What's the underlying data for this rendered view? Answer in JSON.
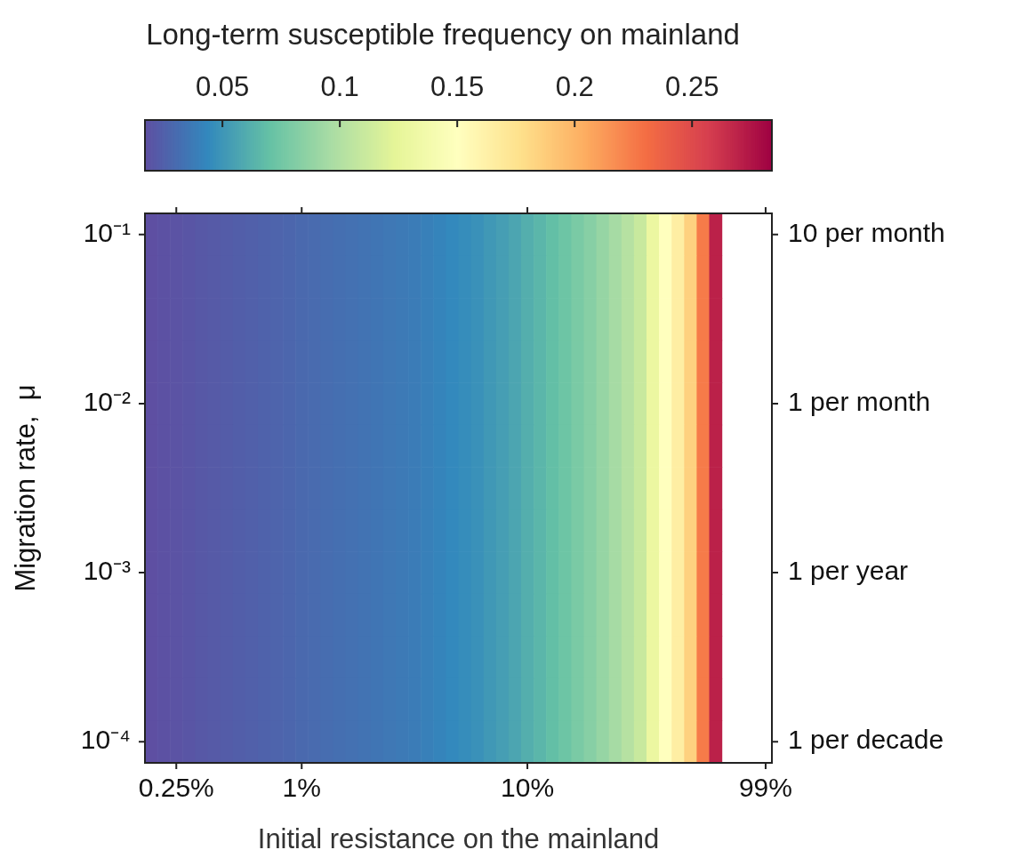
{
  "chart_data": {
    "type": "heatmap",
    "clabel": "Long-term susceptible frequency on mainland",
    "xlabel": "Initial resistance on the mainland",
    "ylabel": "Migration rate,  μ",
    "categories": [
      null,
      null,
      "0.25%",
      null,
      null,
      null,
      null,
      null,
      null,
      null,
      null,
      null,
      "1%",
      null,
      null,
      null,
      null,
      null,
      null,
      null,
      null,
      null,
      null,
      null,
      null,
      null,
      null,
      null,
      null,
      null,
      "10%",
      null,
      null,
      null,
      null,
      null,
      null,
      null,
      null,
      null,
      null,
      null,
      null,
      null,
      null,
      null,
      null,
      null,
      null,
      "99%"
    ],
    "y_categories": [
      "10⁻¹",
      null,
      null,
      null,
      "10⁻²",
      null,
      null,
      null,
      "10⁻³",
      null,
      null,
      null,
      "10⁻⁴"
    ],
    "y2_categories": [
      "10 per month",
      null,
      null,
      null,
      "1 per month",
      null,
      null,
      null,
      "1 per year",
      null,
      null,
      null,
      "1 per decade"
    ],
    "clim": [
      0.017,
      0.284
    ],
    "cticks": [
      0.05,
      0.1,
      0.15,
      0.2,
      0.25
    ],
    "cells": [
      [
        0.017,
        0.018,
        0.019,
        0.02,
        0.021,
        0.022,
        0.023,
        0.024,
        0.025,
        0.026,
        0.027,
        0.028,
        0.029,
        0.03,
        0.031,
        0.032,
        0.033,
        0.034,
        0.035,
        0.036,
        0.037,
        0.038,
        0.04,
        0.042,
        0.044,
        0.046,
        0.048,
        0.051,
        0.054,
        0.057,
        0.061,
        0.065,
        0.069,
        0.073,
        0.078,
        0.083,
        0.089,
        0.095,
        0.102,
        0.11,
        0.13,
        0.15,
        0.165,
        0.185,
        0.225,
        0.27,
        null,
        null,
        null,
        null
      ],
      [
        0.017,
        0.018,
        0.019,
        0.02,
        0.021,
        0.022,
        0.023,
        0.024,
        0.025,
        0.026,
        0.027,
        0.028,
        0.029,
        0.03,
        0.031,
        0.032,
        0.033,
        0.034,
        0.035,
        0.036,
        0.037,
        0.038,
        0.04,
        0.042,
        0.044,
        0.046,
        0.048,
        0.051,
        0.054,
        0.057,
        0.061,
        0.065,
        0.069,
        0.073,
        0.078,
        0.083,
        0.089,
        0.095,
        0.102,
        0.11,
        0.13,
        0.15,
        0.165,
        0.185,
        0.225,
        0.27,
        null,
        null,
        null,
        null
      ],
      [
        0.017,
        0.018,
        0.019,
        0.02,
        0.021,
        0.022,
        0.023,
        0.024,
        0.025,
        0.026,
        0.027,
        0.028,
        0.029,
        0.03,
        0.031,
        0.032,
        0.033,
        0.034,
        0.035,
        0.036,
        0.037,
        0.038,
        0.04,
        0.042,
        0.044,
        0.046,
        0.048,
        0.051,
        0.054,
        0.057,
        0.061,
        0.065,
        0.069,
        0.073,
        0.078,
        0.083,
        0.089,
        0.095,
        0.102,
        0.11,
        0.13,
        0.15,
        0.165,
        0.185,
        0.225,
        0.27,
        null,
        null,
        null,
        null
      ],
      [
        0.017,
        0.018,
        0.019,
        0.02,
        0.021,
        0.022,
        0.023,
        0.024,
        0.025,
        0.026,
        0.027,
        0.028,
        0.029,
        0.03,
        0.031,
        0.032,
        0.033,
        0.034,
        0.035,
        0.036,
        0.037,
        0.038,
        0.04,
        0.042,
        0.044,
        0.046,
        0.048,
        0.051,
        0.054,
        0.057,
        0.061,
        0.065,
        0.069,
        0.073,
        0.078,
        0.083,
        0.089,
        0.095,
        0.102,
        0.11,
        0.13,
        0.15,
        0.165,
        0.185,
        0.225,
        0.27,
        null,
        null,
        null,
        null
      ],
      [
        0.017,
        0.018,
        0.019,
        0.02,
        0.021,
        0.022,
        0.023,
        0.024,
        0.025,
        0.026,
        0.027,
        0.028,
        0.029,
        0.03,
        0.031,
        0.032,
        0.033,
        0.034,
        0.035,
        0.036,
        0.037,
        0.038,
        0.04,
        0.042,
        0.044,
        0.046,
        0.048,
        0.051,
        0.054,
        0.057,
        0.061,
        0.065,
        0.069,
        0.073,
        0.078,
        0.083,
        0.089,
        0.095,
        0.102,
        0.11,
        0.13,
        0.15,
        0.165,
        0.185,
        0.225,
        0.27,
        null,
        null,
        null,
        null
      ],
      [
        0.017,
        0.018,
        0.019,
        0.02,
        0.021,
        0.022,
        0.023,
        0.024,
        0.025,
        0.026,
        0.027,
        0.028,
        0.029,
        0.03,
        0.031,
        0.032,
        0.033,
        0.034,
        0.035,
        0.036,
        0.037,
        0.038,
        0.04,
        0.042,
        0.044,
        0.046,
        0.048,
        0.051,
        0.054,
        0.057,
        0.061,
        0.065,
        0.069,
        0.073,
        0.078,
        0.083,
        0.089,
        0.095,
        0.102,
        0.11,
        0.13,
        0.15,
        0.165,
        0.185,
        0.225,
        0.27,
        null,
        null,
        null,
        null
      ],
      [
        0.017,
        0.018,
        0.019,
        0.02,
        0.021,
        0.022,
        0.023,
        0.024,
        0.025,
        0.026,
        0.027,
        0.028,
        0.029,
        0.03,
        0.031,
        0.032,
        0.033,
        0.034,
        0.035,
        0.036,
        0.037,
        0.038,
        0.04,
        0.042,
        0.044,
        0.046,
        0.048,
        0.051,
        0.054,
        0.057,
        0.061,
        0.065,
        0.069,
        0.073,
        0.078,
        0.083,
        0.089,
        0.095,
        0.102,
        0.11,
        0.13,
        0.15,
        0.165,
        0.185,
        0.225,
        0.27,
        null,
        null,
        null,
        null
      ],
      [
        0.017,
        0.018,
        0.019,
        0.02,
        0.021,
        0.022,
        0.023,
        0.024,
        0.025,
        0.026,
        0.027,
        0.028,
        0.029,
        0.03,
        0.031,
        0.032,
        0.033,
        0.034,
        0.035,
        0.036,
        0.037,
        0.038,
        0.04,
        0.042,
        0.044,
        0.046,
        0.048,
        0.051,
        0.054,
        0.057,
        0.061,
        0.065,
        0.069,
        0.073,
        0.078,
        0.083,
        0.089,
        0.095,
        0.102,
        0.11,
        0.13,
        0.15,
        0.165,
        0.185,
        0.225,
        0.27,
        null,
        null,
        null,
        null
      ],
      [
        0.017,
        0.018,
        0.019,
        0.02,
        0.021,
        0.022,
        0.023,
        0.024,
        0.025,
        0.026,
        0.027,
        0.028,
        0.029,
        0.03,
        0.031,
        0.032,
        0.033,
        0.034,
        0.035,
        0.036,
        0.037,
        0.038,
        0.04,
        0.042,
        0.044,
        0.046,
        0.048,
        0.051,
        0.054,
        0.057,
        0.061,
        0.065,
        0.069,
        0.073,
        0.078,
        0.083,
        0.089,
        0.095,
        0.102,
        0.11,
        0.13,
        0.15,
        0.165,
        0.185,
        0.225,
        0.27,
        null,
        null,
        null,
        null
      ],
      [
        0.017,
        0.018,
        0.019,
        0.02,
        0.021,
        0.022,
        0.023,
        0.024,
        0.025,
        0.026,
        0.027,
        0.028,
        0.029,
        0.03,
        0.031,
        0.032,
        0.033,
        0.034,
        0.035,
        0.036,
        0.037,
        0.038,
        0.04,
        0.042,
        0.044,
        0.046,
        0.048,
        0.051,
        0.054,
        0.057,
        0.061,
        0.065,
        0.069,
        0.073,
        0.078,
        0.083,
        0.089,
        0.095,
        0.102,
        0.11,
        0.13,
        0.15,
        0.165,
        0.185,
        0.225,
        0.27,
        null,
        null,
        null,
        null
      ],
      [
        0.017,
        0.018,
        0.019,
        0.02,
        0.021,
        0.022,
        0.023,
        0.024,
        0.025,
        0.026,
        0.027,
        0.028,
        0.029,
        0.03,
        0.031,
        0.032,
        0.033,
        0.034,
        0.035,
        0.036,
        0.037,
        0.038,
        0.04,
        0.042,
        0.044,
        0.046,
        0.048,
        0.051,
        0.054,
        0.057,
        0.061,
        0.065,
        0.069,
        0.073,
        0.078,
        0.083,
        0.089,
        0.095,
        0.102,
        0.11,
        0.13,
        0.15,
        0.165,
        0.185,
        0.225,
        0.27,
        null,
        null,
        null,
        null
      ],
      [
        0.017,
        0.018,
        0.019,
        0.02,
        0.021,
        0.022,
        0.023,
        0.024,
        0.025,
        0.026,
        0.027,
        0.028,
        0.029,
        0.03,
        0.031,
        0.032,
        0.033,
        0.034,
        0.035,
        0.036,
        0.037,
        0.038,
        0.04,
        0.042,
        0.044,
        0.046,
        0.048,
        0.051,
        0.054,
        0.057,
        0.061,
        0.065,
        0.069,
        0.073,
        0.078,
        0.083,
        0.089,
        0.095,
        0.102,
        0.11,
        0.13,
        0.15,
        0.165,
        0.185,
        0.225,
        0.27,
        null,
        null,
        null,
        null
      ],
      [
        0.017,
        0.018,
        0.019,
        0.02,
        0.021,
        0.022,
        0.023,
        0.024,
        0.025,
        0.026,
        0.027,
        0.028,
        0.029,
        0.03,
        0.031,
        0.032,
        0.033,
        0.034,
        0.035,
        0.036,
        0.037,
        0.038,
        0.04,
        0.042,
        0.044,
        0.046,
        0.048,
        0.051,
        0.054,
        0.057,
        0.061,
        0.065,
        0.069,
        0.073,
        0.078,
        0.083,
        0.089,
        0.095,
        0.102,
        0.11,
        0.13,
        0.15,
        0.165,
        0.185,
        0.225,
        0.27,
        null,
        null,
        null,
        null
      ]
    ]
  }
}
